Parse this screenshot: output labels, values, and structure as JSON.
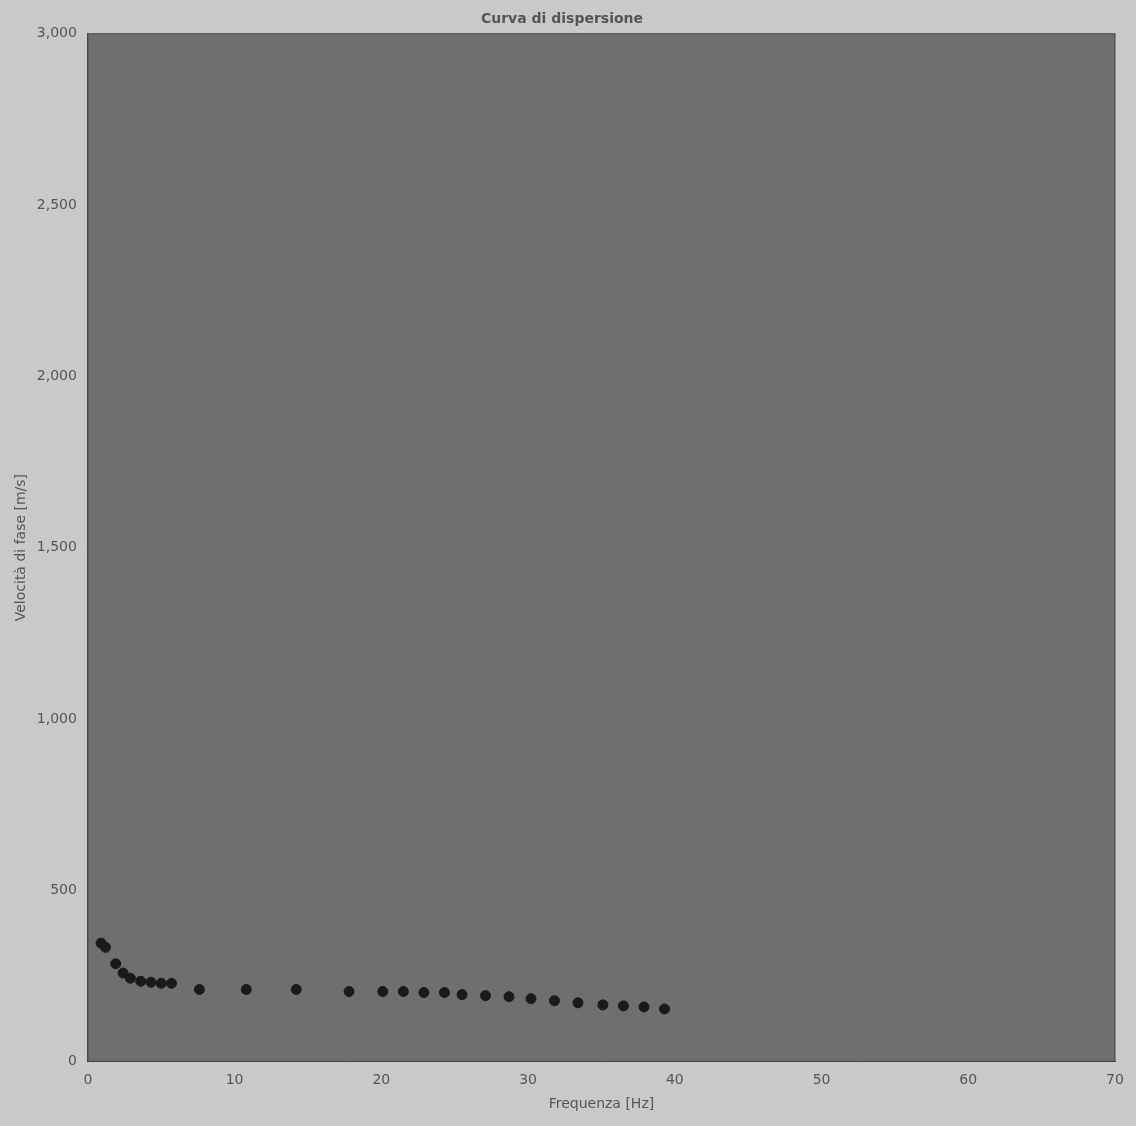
{
  "chart_data": {
    "type": "scatter",
    "title": "Curva di dispersione",
    "x_label": "Frequenza [Hz]",
    "y_label": "Velocità di fase [m/s]",
    "x": [
      0.9,
      1.2,
      1.9,
      2.4,
      2.9,
      3.6,
      4.3,
      5.0,
      5.7,
      7.6,
      10.8,
      14.2,
      17.8,
      20.1,
      21.5,
      22.9,
      24.3,
      25.5,
      27.1,
      28.7,
      30.2,
      31.8,
      33.4,
      35.1,
      36.5,
      37.9,
      39.3
    ],
    "values": [
      345,
      333,
      285,
      258,
      243,
      234,
      231,
      228,
      228,
      210,
      210,
      210,
      204,
      204,
      204,
      201,
      201,
      195,
      192,
      189,
      183,
      177,
      171,
      165,
      162,
      159,
      153
    ],
    "color": "#1a1a1a",
    "marker": "circle",
    "xlim": [
      0,
      70
    ],
    "xticks": [
      0,
      10,
      20,
      30,
      40,
      50,
      60,
      70
    ],
    "ylim": [
      0,
      3000
    ],
    "yticks": [
      0,
      500,
      1000,
      1500,
      2000,
      2500,
      3000
    ],
    "grid": false
  }
}
